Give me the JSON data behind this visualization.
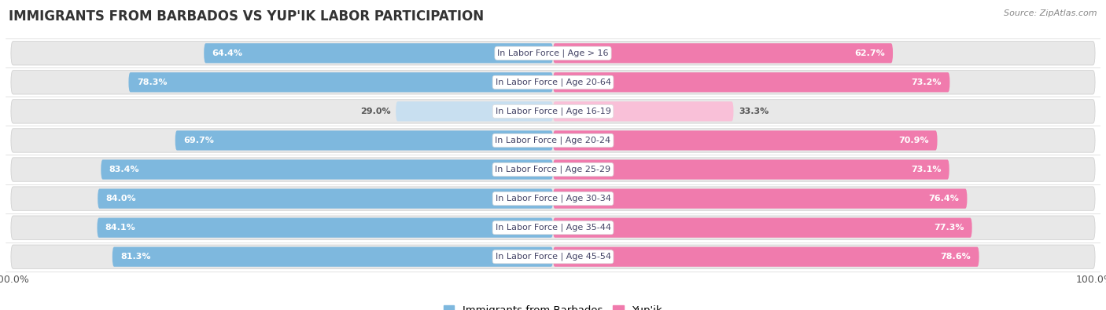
{
  "title": "IMMIGRANTS FROM BARBADOS VS YUP'IK LABOR PARTICIPATION",
  "source": "Source: ZipAtlas.com",
  "categories": [
    "In Labor Force | Age > 16",
    "In Labor Force | Age 20-64",
    "In Labor Force | Age 16-19",
    "In Labor Force | Age 20-24",
    "In Labor Force | Age 25-29",
    "In Labor Force | Age 30-34",
    "In Labor Force | Age 35-44",
    "In Labor Force | Age 45-54"
  ],
  "barbados_values": [
    64.4,
    78.3,
    29.0,
    69.7,
    83.4,
    84.0,
    84.1,
    81.3
  ],
  "yupik_values": [
    62.7,
    73.2,
    33.3,
    70.9,
    73.1,
    76.4,
    77.3,
    78.6
  ],
  "barbados_color": "#7eb8de",
  "yupik_color": "#f07bad",
  "barbados_color_light": "#c8dff0",
  "yupik_color_light": "#f9c0d8",
  "bg_color": "#ffffff",
  "row_bg_color": "#e8e8e8",
  "max_val": 100.0,
  "legend_label_barbados": "Immigrants from Barbados",
  "legend_label_yupik": "Yup'ik",
  "title_fontsize": 12,
  "label_fontsize": 8,
  "cat_fontsize": 8,
  "tick_fontsize": 9,
  "source_fontsize": 8
}
